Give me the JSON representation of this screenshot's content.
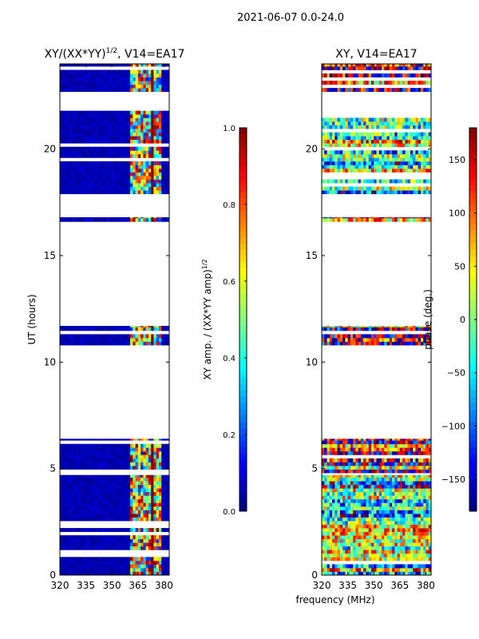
{
  "figure_title": "2021-06-07 0.0-24.0",
  "shared_xlabel": "frequency (MHz)",
  "colormap": [
    "#00007f",
    "#0000ff",
    "#007fff",
    "#00ffff",
    "#7fff7f",
    "#ffff00",
    "#ff7f00",
    "#ff0000",
    "#7f0000"
  ],
  "chart_data": [
    {
      "type": "heatmap",
      "title_main": "XY/(XX*YY)",
      "title_sup": "1/2",
      "title_rest": ", V14=EA17",
      "ylabel": "UT (hours)",
      "xlabel": "",
      "xlim": [
        320,
        383
      ],
      "ylim": [
        0,
        24
      ],
      "xticks": [
        "320",
        "335",
        "350",
        "365",
        "380"
      ],
      "xtick_values": [
        320,
        335,
        350,
        365,
        380
      ],
      "yticks": [
        "0",
        "5",
        "10",
        "15",
        "20"
      ],
      "ytick_values": [
        0,
        5,
        10,
        15,
        20
      ],
      "data_bands_hours": [
        [
          0,
          4.7
        ],
        [
          4.8,
          6.4
        ],
        [
          10.8,
          11.7
        ],
        [
          16.6,
          16.8
        ],
        [
          17.9,
          21.8
        ],
        [
          22.7,
          24
        ]
      ],
      "colorbar": {
        "label_main": "XY amp. / (XX*YY amp)",
        "label_sup": "1/2",
        "range": [
          0,
          1
        ],
        "ticks": [
          "0.0",
          "0.2",
          "0.4",
          "0.6",
          "0.8",
          "1.0"
        ],
        "tick_values": [
          0,
          0.2,
          0.4,
          0.6,
          0.8,
          1.0
        ]
      }
    },
    {
      "type": "heatmap",
      "title_main": "XY, V14=EA17",
      "title_sup": "",
      "title_rest": "",
      "ylabel": "",
      "xlabel": "frequency (MHz)",
      "xlim": [
        320,
        383
      ],
      "ylim": [
        0,
        24
      ],
      "xticks": [
        "320",
        "335",
        "350",
        "365",
        "380"
      ],
      "xtick_values": [
        320,
        335,
        350,
        365,
        380
      ],
      "yticks": [
        "0",
        "5",
        "10",
        "15",
        "20"
      ],
      "ytick_values": [
        0,
        5,
        10,
        15,
        20
      ],
      "data_bands_hours": [
        [
          0,
          4.7
        ],
        [
          4.8,
          6.4
        ],
        [
          10.8,
          11.7
        ],
        [
          16.6,
          16.8
        ],
        [
          17.9,
          21.8
        ],
        [
          22.7,
          24
        ]
      ],
      "colorbar": {
        "label_main": "phase (deg.)",
        "label_sup": "",
        "range": [
          -180,
          180
        ],
        "ticks": [
          "−150",
          "−100",
          "−50",
          "0",
          "50",
          "100",
          "150"
        ],
        "tick_values": [
          -150,
          -100,
          -50,
          0,
          50,
          100,
          150
        ]
      }
    }
  ]
}
